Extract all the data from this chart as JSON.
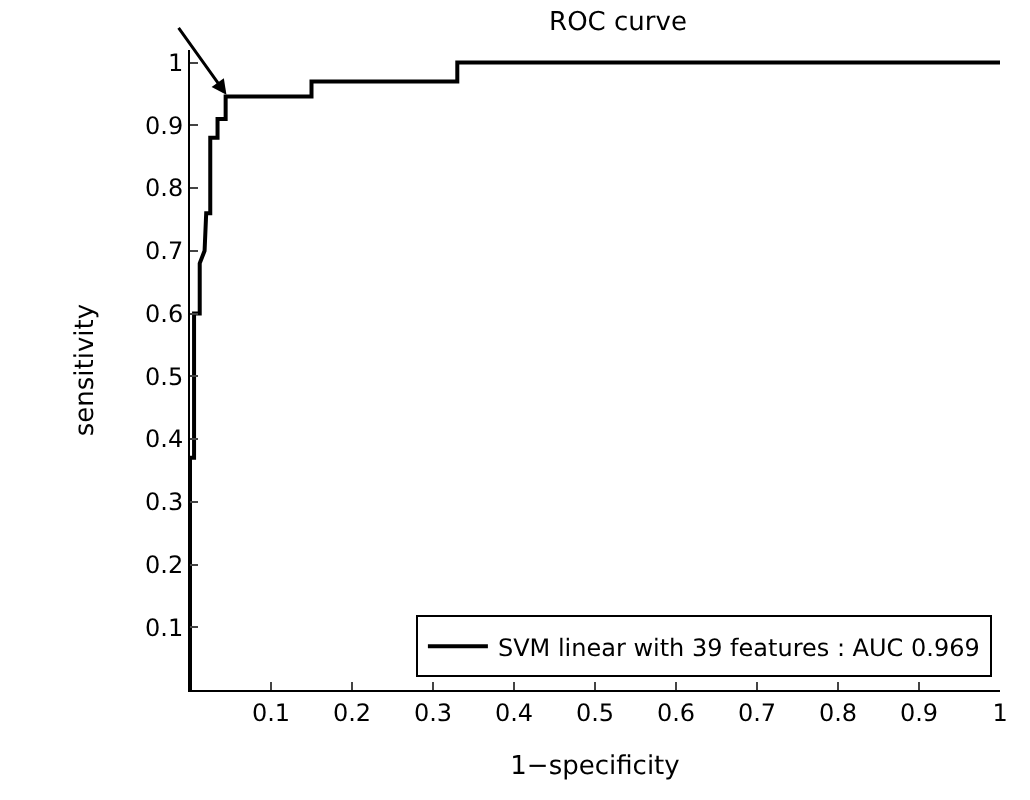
{
  "chart_data": {
    "type": "line",
    "title": "ROC curve",
    "xlabel": "1−specificity",
    "ylabel": "sensitivity",
    "series": [
      {
        "name": "SVM linear with 39 features : AUC 0.969",
        "color": "#000000",
        "x": [
          0,
          0,
          0.005,
          0.005,
          0.012,
          0.012,
          0.018,
          0.02,
          0.025,
          0.025,
          0.034,
          0.034,
          0.044,
          0.044,
          0.15,
          0.15,
          0.33,
          0.33,
          1
        ],
        "values": [
          0,
          0.37,
          0.37,
          0.6,
          0.6,
          0.68,
          0.7,
          0.76,
          0.76,
          0.88,
          0.88,
          0.91,
          0.91,
          0.946,
          0.946,
          0.97,
          0.97,
          1.0,
          1.0
        ]
      }
    ],
    "xlim": [
      0,
      1
    ],
    "ylim": [
      0,
      1.02
    ],
    "xticks": [
      0.1,
      0.2,
      0.3,
      0.4,
      0.5,
      0.6,
      0.7,
      0.8,
      0.9,
      1
    ],
    "yticks": [
      0.1,
      0.2,
      0.3,
      0.4,
      0.5,
      0.6,
      0.7,
      0.8,
      0.9,
      1
    ],
    "legend": "bottom right",
    "marker": "none",
    "line_style": "solid"
  }
}
